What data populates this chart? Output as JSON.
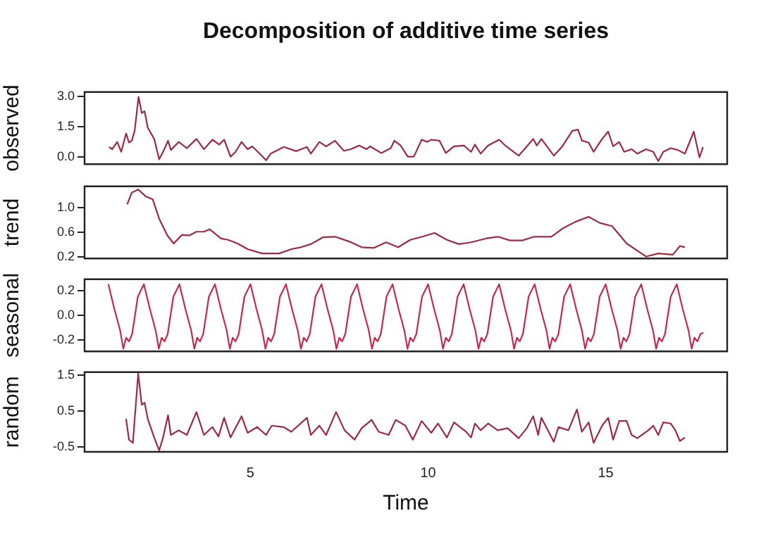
{
  "chart_data": [
    {
      "type": "line",
      "title": "Decomposition of additive time series",
      "ylabel": "observed",
      "tick_labels": "y",
      "xlim": [
        0.33,
        18.42
      ],
      "ylim": [
        -0.37,
        3.2
      ],
      "yticks": [
        {
          "value": 0,
          "label": "0.0"
        },
        1.5,
        {
          "value": 3,
          "label": "3.0"
        }
      ],
      "color": "#9e2a3f",
      "x": [
        1.02,
        1.11,
        1.25,
        1.36,
        1.5,
        1.58,
        1.66,
        1.74,
        1.85,
        1.94,
        2.02,
        2.11,
        2.29,
        2.43,
        2.54,
        2.68,
        2.76,
        2.98,
        3.21,
        3.48,
        3.69,
        3.93,
        4.12,
        4.26,
        4.44,
        4.58,
        4.75,
        4.92,
        5.05,
        5.26,
        5.44,
        5.57,
        5.94,
        6.29,
        6.59,
        6.7,
        6.94,
        7.13,
        7.38,
        7.63,
        7.82,
        8.06,
        8.27,
        8.37,
        8.68,
        8.95,
        9.05,
        9.23,
        9.43,
        9.6,
        9.82,
        9.98,
        10.09,
        10.32,
        10.5,
        10.73,
        11.01,
        11.21,
        11.32,
        11.48,
        11.69,
        12,
        12.2,
        12.55,
        12.78,
        12.96,
        13.06,
        13.19,
        13.54,
        13.78,
        14.06,
        14.22,
        14.33,
        14.52,
        14.66,
        14.9,
        15.07,
        15.21,
        15.38,
        15.52,
        15.73,
        15.89,
        16.14,
        16.34,
        16.48,
        16.62,
        16.83,
        17.03,
        17.23,
        17.48,
        17.64,
        17.74
      ],
      "values": [
        0.48,
        0.37,
        0.73,
        0.24,
        1.15,
        0.7,
        0.79,
        1.28,
        2.96,
        2.16,
        2.25,
        1.43,
        0.88,
        -0.13,
        0.24,
        0.79,
        0.33,
        0.73,
        0.42,
        0.88,
        0.37,
        0.84,
        0.6,
        0.84,
        0,
        0.24,
        0.73,
        0.37,
        0.51,
        0.15,
        -0.18,
        0.15,
        0.48,
        0.27,
        0.48,
        0.15,
        0.73,
        0.51,
        0.79,
        0.29,
        0.37,
        0.55,
        0.37,
        0.51,
        0.18,
        0.42,
        0.79,
        0.55,
        0,
        0,
        0.84,
        0.73,
        0.84,
        0.79,
        0.18,
        0.51,
        0.55,
        0.24,
        0.6,
        0.15,
        0.55,
        0.84,
        0.51,
        0.05,
        0.51,
        0.88,
        0.55,
        0.88,
        0.05,
        0.51,
        1.28,
        1.34,
        0.79,
        0.7,
        0.24,
        0.88,
        1.24,
        0.51,
        0.73,
        0.24,
        0.37,
        0.15,
        0.37,
        0.24,
        -0.22,
        0.24,
        0.42,
        0.33,
        0.15,
        1.24,
        -0.04,
        0.48
      ]
    },
    {
      "type": "line",
      "ylabel": "trend",
      "tick_labels": "y",
      "xlim": [
        0.33,
        18.42
      ],
      "ylim": [
        0.18,
        1.34
      ],
      "yticks": [
        0.2,
        0.6,
        {
          "value": 1,
          "label": "1.0"
        }
      ],
      "color": "#9e2a3f",
      "x": [
        1.53,
        1.66,
        1.84,
        2.05,
        2.25,
        2.43,
        2.66,
        2.84,
        3.07,
        3.28,
        3.48,
        3.69,
        3.85,
        4.17,
        4.37,
        4.64,
        4.92,
        5.33,
        5.81,
        6.15,
        6.42,
        6.7,
        7.04,
        7.38,
        7.79,
        8.13,
        8.47,
        8.82,
        9.16,
        9.5,
        9.84,
        10.18,
        10.53,
        10.87,
        11.21,
        11.62,
        11.96,
        12.31,
        12.65,
        12.99,
        13.47,
        13.81,
        14.15,
        14.52,
        14.84,
        15.18,
        15.59,
        16.14,
        16.48,
        16.89,
        17.09,
        17.23
      ],
      "values": [
        1.05,
        1.24,
        1.29,
        1.18,
        1.13,
        0.82,
        0.55,
        0.42,
        0.56,
        0.55,
        0.61,
        0.61,
        0.65,
        0.5,
        0.48,
        0.42,
        0.33,
        0.26,
        0.26,
        0.33,
        0.36,
        0.41,
        0.52,
        0.53,
        0.45,
        0.36,
        0.35,
        0.44,
        0.36,
        0.48,
        0.53,
        0.59,
        0.48,
        0.41,
        0.44,
        0.5,
        0.53,
        0.47,
        0.47,
        0.53,
        0.53,
        0.67,
        0.77,
        0.85,
        0.75,
        0.7,
        0.42,
        0.21,
        0.26,
        0.24,
        0.38,
        0.36
      ]
    },
    {
      "type": "line",
      "ylabel": "seasonal",
      "tick_labels": "y",
      "xlim": [
        0.33,
        18.42
      ],
      "ylim": [
        -0.29,
        0.29
      ],
      "yticks": [
        -0.2,
        {
          "value": 0,
          "label": "0.0"
        },
        0.2
      ],
      "color": "#c8284a",
      "x": [
        1,
        1.17,
        1.33,
        1.42,
        1.5,
        1.58,
        1.67,
        1.83,
        2,
        2.17,
        2.33,
        2.42,
        2.5,
        2.58,
        2.67,
        2.83,
        3,
        3.17,
        3.33,
        3.42,
        3.5,
        3.58,
        3.67,
        3.83,
        4,
        4.17,
        4.33,
        4.42,
        4.5,
        4.58,
        4.67,
        4.83,
        5,
        5.17,
        5.33,
        5.42,
        5.5,
        5.58,
        5.67,
        5.83,
        6,
        6.17,
        6.33,
        6.42,
        6.5,
        6.58,
        6.67,
        6.83,
        7,
        7.17,
        7.33,
        7.42,
        7.5,
        7.58,
        7.67,
        7.83,
        8,
        8.17,
        8.33,
        8.42,
        8.5,
        8.58,
        8.67,
        8.83,
        9,
        9.17,
        9.33,
        9.42,
        9.5,
        9.58,
        9.67,
        9.83,
        10,
        10.17,
        10.33,
        10.42,
        10.5,
        10.58,
        10.67,
        10.83,
        11,
        11.17,
        11.33,
        11.42,
        11.5,
        11.58,
        11.67,
        11.83,
        12,
        12.17,
        12.33,
        12.42,
        12.5,
        12.58,
        12.67,
        12.83,
        13,
        13.17,
        13.33,
        13.42,
        13.5,
        13.58,
        13.67,
        13.83,
        14,
        14.17,
        14.33,
        14.42,
        14.5,
        14.58,
        14.67,
        14.83,
        15,
        15.17,
        15.33,
        15.42,
        15.5,
        15.58,
        15.67,
        15.83,
        16,
        16.17,
        16.33,
        16.42,
        16.5,
        16.58,
        16.67,
        16.83,
        17,
        17.17,
        17.33,
        17.42,
        17.5,
        17.58,
        17.67,
        17.75
      ],
      "values": [
        0.25,
        0.05,
        -0.12,
        -0.27,
        -0.18,
        -0.21,
        -0.15,
        0.15,
        0.25,
        0.05,
        -0.12,
        -0.27,
        -0.18,
        -0.21,
        -0.15,
        0.15,
        0.25,
        0.05,
        -0.12,
        -0.27,
        -0.18,
        -0.21,
        -0.15,
        0.15,
        0.25,
        0.05,
        -0.12,
        -0.27,
        -0.18,
        -0.21,
        -0.15,
        0.15,
        0.25,
        0.05,
        -0.12,
        -0.27,
        -0.18,
        -0.21,
        -0.15,
        0.15,
        0.25,
        0.05,
        -0.12,
        -0.27,
        -0.18,
        -0.21,
        -0.15,
        0.15,
        0.25,
        0.05,
        -0.12,
        -0.27,
        -0.18,
        -0.21,
        -0.15,
        0.15,
        0.25,
        0.05,
        -0.12,
        -0.27,
        -0.18,
        -0.21,
        -0.15,
        0.15,
        0.25,
        0.05,
        -0.12,
        -0.27,
        -0.18,
        -0.21,
        -0.15,
        0.15,
        0.25,
        0.05,
        -0.12,
        -0.27,
        -0.18,
        -0.21,
        -0.15,
        0.15,
        0.25,
        0.05,
        -0.12,
        -0.27,
        -0.18,
        -0.21,
        -0.15,
        0.15,
        0.25,
        0.05,
        -0.12,
        -0.27,
        -0.18,
        -0.21,
        -0.15,
        0.15,
        0.25,
        0.05,
        -0.12,
        -0.27,
        -0.18,
        -0.21,
        -0.15,
        0.15,
        0.25,
        0.05,
        -0.12,
        -0.27,
        -0.18,
        -0.21,
        -0.15,
        0.15,
        0.25,
        0.05,
        -0.12,
        -0.27,
        -0.18,
        -0.21,
        -0.15,
        0.15,
        0.25,
        0.05,
        -0.12,
        -0.27,
        -0.18,
        -0.21,
        -0.15,
        0.15,
        0.25,
        0.05,
        -0.12,
        -0.27,
        -0.18,
        -0.21,
        -0.15,
        -0.14
      ]
    },
    {
      "type": "line",
      "ylabel": "random",
      "xlabel": "Time",
      "xlim": [
        0.33,
        18.42
      ],
      "xticks": [
        5,
        10,
        15
      ],
      "ylim": [
        -0.64,
        1.58
      ],
      "yticks": [
        -0.5,
        0.5,
        1.5
      ],
      "color": "#9e2a3f",
      "x": [
        1.5,
        1.58,
        1.69,
        1.84,
        1.94,
        2.02,
        2.11,
        2.29,
        2.43,
        2.54,
        2.68,
        2.76,
        2.98,
        3.21,
        3.48,
        3.69,
        3.93,
        4.1,
        4.26,
        4.44,
        4.75,
        4.92,
        5.19,
        5.44,
        5.6,
        5.94,
        6.15,
        6.59,
        6.7,
        6.94,
        7.13,
        7.41,
        7.65,
        7.93,
        8.13,
        8.41,
        8.61,
        8.89,
        9.09,
        9.36,
        9.57,
        9.82,
        10.09,
        10.28,
        10.53,
        10.73,
        11.07,
        11.21,
        11.32,
        11.48,
        11.69,
        11.96,
        12.24,
        12.55,
        12.78,
        12.96,
        13.1,
        13.19,
        13.54,
        13.67,
        13.95,
        14.19,
        14.33,
        14.52,
        14.66,
        14.9,
        15.07,
        15.21,
        15.38,
        15.59,
        15.73,
        15.89,
        16.2,
        16.34,
        16.48,
        16.62,
        16.83,
        16.96,
        17.09,
        17.23
      ],
      "values": [
        0.28,
        -0.3,
        -0.39,
        1.54,
        0.67,
        0.73,
        0.28,
        -0.24,
        -0.6,
        -0.24,
        0.38,
        -0.17,
        -0.04,
        -0.17,
        0.47,
        -0.17,
        0.05,
        -0.21,
        0.31,
        -0.24,
        0.35,
        -0.11,
        0.05,
        -0.17,
        0.09,
        0.05,
        -0.08,
        0.31,
        -0.17,
        0.09,
        -0.17,
        0.47,
        -0.04,
        -0.3,
        0.02,
        0.25,
        -0.08,
        -0.17,
        0.25,
        0.09,
        -0.3,
        0.22,
        -0.11,
        0.15,
        -0.24,
        0.18,
        -0.08,
        -0.24,
        0.15,
        -0.04,
        0.15,
        -0.04,
        0.02,
        -0.26,
        0.02,
        0.35,
        -0.17,
        0.31,
        -0.36,
        0.05,
        -0.04,
        0.54,
        -0.08,
        0.18,
        -0.39,
        0.09,
        0.31,
        -0.3,
        0.22,
        0.22,
        -0.17,
        -0.26,
        -0.04,
        0.09,
        -0.17,
        0.18,
        0.15,
        -0.04,
        -0.34,
        -0.24
      ]
    }
  ]
}
